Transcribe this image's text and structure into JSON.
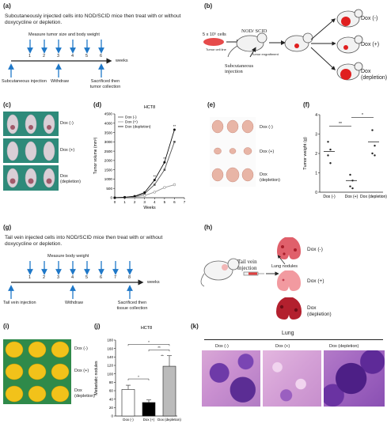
{
  "panels": {
    "a": {
      "label": "(a)",
      "title": "Subcutaneously injected cells into NOD/SCID mice then treat with or without doxycycline or depletion.",
      "top_label": "Measure tumor size and body weight",
      "weeks": [
        "1",
        "2",
        "3",
        "4",
        "5",
        "6"
      ],
      "weeks_label": "weeks",
      "injection_label": "Subcutaneous injection",
      "withdraw_label": "Withdraw",
      "sacrificed_label": "Sacrificed then tumor collection"
    },
    "b": {
      "label": "(b)",
      "cells_label": "5 x 10⁵ cells",
      "cell_line_label": "Tumor cell line",
      "mouse_strain": "NOD/ SCID",
      "engraftment_label": "Tumor engraftment",
      "injection_label": "Subcutaneous injection",
      "groups": [
        "Dox (-)",
        "Dox (+)",
        "Dox (depletion)"
      ]
    },
    "c": {
      "label": "(c)",
      "groups": [
        "Dox (-)",
        "Dox (+)",
        "Dox (depletion)"
      ]
    },
    "d": {
      "label": "(d)"
    },
    "e": {
      "label": "(e)",
      "groups": [
        "Dox (-)",
        "Dox (+)",
        "Dox (depletion)"
      ]
    },
    "f": {
      "label": "(f)"
    },
    "g": {
      "label": "(g)",
      "title": "Tail vein injected cells into NOD/SCID mice then treat with or without doxycycline or depletion.",
      "top_label": "Measure body weight",
      "weeks": [
        "1",
        "2",
        "3",
        "4",
        "5",
        "6",
        "7",
        "8"
      ],
      "weeks_label": "weeks",
      "injection_label": "Tail vein injection",
      "withdraw_label": "Withdraw",
      "sacrificed_label": "Sacrificed then tissue collection"
    },
    "h": {
      "label": "(h)",
      "injection_label": "Tail vein injection",
      "nodules_label": "Lung nodules",
      "groups": [
        "Dox (-)",
        "Dox (+)",
        "Dox (depletion)"
      ]
    },
    "i": {
      "label": "(i)",
      "groups": [
        "Dox (-)",
        "Dox (+)",
        "Dox (depletion)"
      ]
    },
    "j": {
      "label": "(j)"
    },
    "k": {
      "label": "(k)",
      "header": "Lung",
      "columns": [
        "Dox (-)",
        "Dox (+)",
        "Dox (depletion)"
      ]
    }
  },
  "charts": {
    "tumor_volume": {
      "type": "line",
      "title": "HCT8",
      "xlabel": "Weeks",
      "ylabel": "Tumor volume (mm³)",
      "x": [
        0,
        1,
        2,
        3,
        4,
        5,
        6
      ],
      "xlim": [
        0,
        7
      ],
      "ylim": [
        0,
        4500
      ],
      "yticks": [
        0,
        500,
        1000,
        1500,
        2000,
        2500,
        3000,
        3500,
        4000,
        4500
      ],
      "legend_position": "top-left",
      "series": [
        {
          "name": "Dox (-)",
          "values": [
            0,
            20,
            60,
            220,
            700,
            1500,
            3000
          ],
          "color": "#555555"
        },
        {
          "name": "Dox (+)",
          "values": [
            0,
            15,
            40,
            120,
            300,
            550,
            700
          ],
          "color": "#999999"
        },
        {
          "name": "Dox (depletion)",
          "values": [
            0,
            25,
            80,
            280,
            950,
            1900,
            3650
          ],
          "color": "#111111"
        }
      ],
      "annotations": [
        "**",
        "**",
        "**"
      ]
    },
    "tumor_weight": {
      "type": "scatter",
      "ylabel": "Tumor weight (g)",
      "categories": [
        "Dox (-)",
        "Dox (+)",
        "Dox (depletion)"
      ],
      "ylim": [
        0,
        4
      ],
      "yticks": [
        0,
        1,
        2,
        3,
        4
      ],
      "means": [
        2.1,
        0.6,
        2.6
      ],
      "points": [
        [
          2.6,
          2.2,
          1.9,
          1.5
        ],
        [
          0.9,
          0.6,
          0.3,
          0.2
        ],
        [
          3.2,
          2.4,
          2.0,
          1.9
        ]
      ],
      "annotations": [
        "**",
        "*"
      ]
    },
    "metastatic_nodules": {
      "type": "bar",
      "title": "HCT8",
      "ylabel": "Metastatic nodules",
      "categories": [
        "Dox (-)",
        "Dox (+)",
        "Dox (depletion)"
      ],
      "values": [
        63,
        32,
        118
      ],
      "errors": [
        10,
        6,
        25
      ],
      "ylim": [
        0,
        180
      ],
      "yticks": [
        0,
        20,
        40,
        60,
        80,
        100,
        120,
        140,
        160,
        180
      ],
      "colors": [
        "#ffffff",
        "#000000",
        "#bbbbbb"
      ],
      "annotations": [
        "*",
        "*",
        "**",
        "**"
      ]
    }
  }
}
